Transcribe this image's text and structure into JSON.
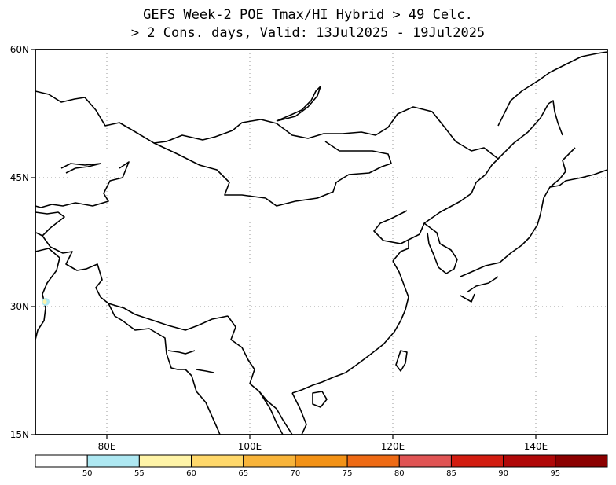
{
  "title": {
    "line1": "GEFS Week-2 POE Tmax/HI Hybrid > 49 Celc.",
    "line2": "> 2 Cons. days, Valid: 13Jul2025 - 19Jul2025"
  },
  "map": {
    "lon_range": [
      70,
      150
    ],
    "lat_range": [
      15,
      60
    ],
    "lat_labels": [
      "60N",
      "45N",
      "30N",
      "15N"
    ],
    "lon_labels": [
      "80E",
      "100E",
      "120E",
      "140E"
    ]
  },
  "colorbar": {
    "thresholds": [
      "50",
      "55",
      "60",
      "65",
      "70",
      "75",
      "80",
      "85",
      "90",
      "95"
    ],
    "colors": [
      "#ffffff",
      "#aee8f2",
      "#fff4a8",
      "#ffd86b",
      "#f8b43a",
      "#f39216",
      "#ee6a14",
      "#e05454",
      "#d21c10",
      "#b00808",
      "#8b0000"
    ]
  }
}
